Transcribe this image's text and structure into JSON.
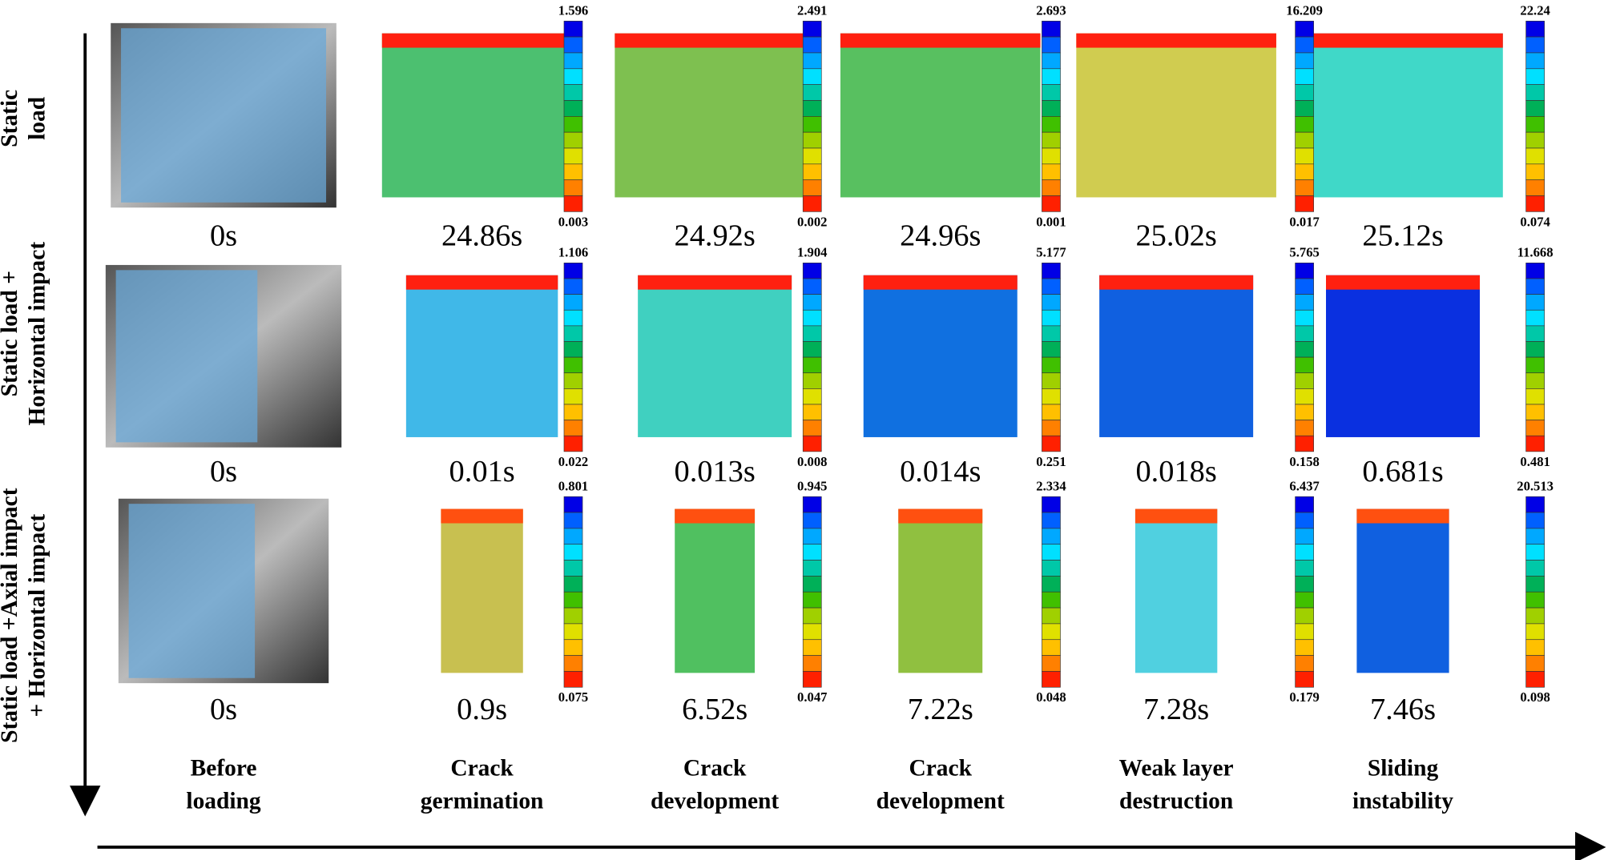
{
  "rows": [
    {
      "label": [
        "Static",
        "load"
      ],
      "times": [
        "0s",
        "24.86s",
        "24.92s",
        "24.96s",
        "25.02s",
        "25.12s"
      ],
      "scales": [
        [
          "1.596",
          "0.003"
        ],
        [
          "2.491",
          "0.002"
        ],
        [
          "2.693",
          "0.001"
        ],
        [
          "16.209",
          "0.017"
        ],
        [
          "22.24",
          "0.074"
        ]
      ]
    },
    {
      "label": [
        "Static load +",
        "Horizontal impact"
      ],
      "times": [
        "0s",
        "0.01s",
        "0.013s",
        "0.014s",
        "0.018s",
        "0.681s"
      ],
      "scales": [
        [
          "1.106",
          "0.022"
        ],
        [
          "1.904",
          "0.008"
        ],
        [
          "5.177",
          "0.251"
        ],
        [
          "5.765",
          "0.158"
        ],
        [
          "11.668",
          "0.481"
        ]
      ]
    },
    {
      "label": [
        "Static load +Axial impact",
        "+ Horizontal impact"
      ],
      "times": [
        "0s",
        "0.9s",
        "6.52s",
        "7.22s",
        "7.28s",
        "7.46s"
      ],
      "scales": [
        [
          "0.801",
          "0.075"
        ],
        [
          "0.945",
          "0.047"
        ],
        [
          "2.334",
          "0.048"
        ],
        [
          "6.437",
          "0.179"
        ],
        [
          "20.513",
          "0.098"
        ]
      ]
    }
  ],
  "columns": [
    [
      "Before",
      "loading"
    ],
    [
      "Crack",
      "germination"
    ],
    [
      "Crack",
      "development"
    ],
    [
      "Crack",
      "development"
    ],
    [
      "Weak layer",
      "destruction"
    ],
    [
      "Sliding",
      "instability"
    ]
  ]
}
